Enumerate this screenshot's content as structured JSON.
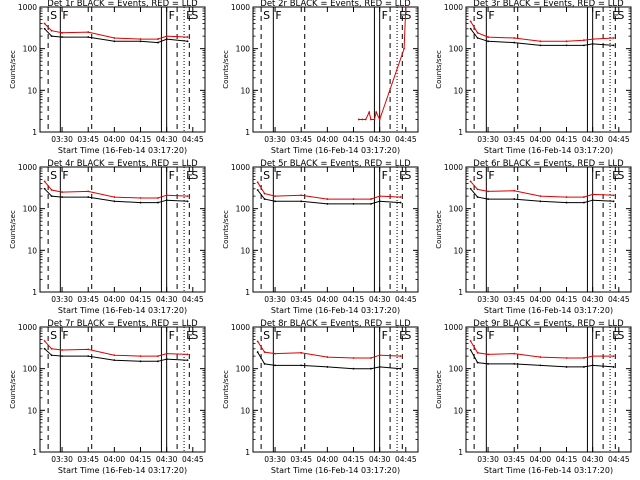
{
  "figure": {
    "common_xlabel": "Start Time (16-Feb-14 03:17:20)",
    "common_ylabel": "Counts/sec",
    "x_tick_labels": [
      "03:30",
      "03:45",
      "04:00",
      "04:15",
      "04:30",
      "04:45"
    ],
    "y_tick_labels": [
      "1",
      "10",
      "100",
      "1000"
    ],
    "colors": {
      "black_series": "#000000",
      "red_series": "#e00000"
    },
    "marker_labels": {
      "S": "S",
      "F": "F",
      "E": "E"
    }
  },
  "chart_data": [
    {
      "type": "line",
      "title": "Det 1r BLACK = Events, RED = LLD",
      "xlabel": "Start Time (16-Feb-14 03:17:20)",
      "ylabel": "Counts/sec",
      "x_ticks": [
        "03:30",
        "03:45",
        "04:00",
        "04:15",
        "04:30",
        "04:45"
      ],
      "y_scale": "log",
      "ylim": [
        1,
        1000
      ],
      "x_points": [
        "03:20",
        "03:24",
        "03:30",
        "03:45",
        "04:00",
        "04:15",
        "04:25",
        "04:30",
        "04:42"
      ],
      "series": [
        {
          "color": "black",
          "values": [
            300,
            200,
            190,
            190,
            150,
            150,
            140,
            170,
            150
          ]
        },
        {
          "color": "red",
          "values": [
            400,
            270,
            240,
            250,
            180,
            170,
            170,
            200,
            190
          ]
        }
      ],
      "markers_solid": [
        "03:29",
        "04:27",
        "04:30"
      ],
      "markers_dashed": [
        "03:22",
        "03:47",
        "04:36",
        "04:43"
      ],
      "markers_dotted": [
        "04:40"
      ],
      "marker_letters": [
        "S",
        "F",
        "F",
        "E",
        "S"
      ]
    },
    {
      "type": "line",
      "title": "Det 2r BLACK = Events, RED = LLD",
      "xlabel": "Start Time (16-Feb-14 03:17:20)",
      "ylabel": "Counts/sec",
      "x_ticks": [
        "03:30",
        "03:45",
        "04:00",
        "04:15",
        "04:30",
        "04:45"
      ],
      "y_scale": "log",
      "ylim": [
        1,
        1000
      ],
      "x_points": [
        "04:18",
        "04:20",
        "04:22",
        "04:24",
        "04:25",
        "04:27",
        "04:28",
        "04:30",
        "04:44",
        "04:45"
      ],
      "series": [
        {
          "color": "red",
          "values": [
            2,
            2,
            2,
            3,
            2,
            2,
            3,
            2,
            100,
            1000
          ]
        }
      ],
      "markers_solid": [
        "03:29",
        "04:27",
        "04:30"
      ],
      "markers_dashed": [
        "03:22",
        "03:47",
        "04:36",
        "04:43"
      ],
      "markers_dotted": [
        "04:40"
      ],
      "marker_letters": [
        "S",
        "F",
        "F",
        "E",
        "S"
      ]
    },
    {
      "type": "line",
      "title": "Det 3r BLACK = Events, RED = LLD",
      "xlabel": "Start Time (16-Feb-14 03:17:20)",
      "ylabel": "Counts/sec",
      "x_ticks": [
        "03:30",
        "03:45",
        "04:00",
        "04:15",
        "04:30",
        "04:45"
      ],
      "y_scale": "log",
      "ylim": [
        1,
        1000
      ],
      "x_points": [
        "03:20",
        "03:24",
        "03:30",
        "03:45",
        "04:00",
        "04:15",
        "04:25",
        "04:30",
        "04:42"
      ],
      "series": [
        {
          "color": "black",
          "values": [
            300,
            180,
            150,
            140,
            120,
            120,
            120,
            130,
            120
          ]
        },
        {
          "color": "red",
          "values": [
            450,
            240,
            190,
            180,
            150,
            150,
            160,
            170,
            180
          ]
        }
      ],
      "markers_solid": [
        "03:29",
        "04:27",
        "04:30"
      ],
      "markers_dashed": [
        "03:22",
        "03:47",
        "04:36",
        "04:43"
      ],
      "markers_dotted": [
        "04:40"
      ],
      "marker_letters": [
        "S",
        "F",
        "F",
        "E",
        "S"
      ]
    },
    {
      "type": "line",
      "title": "Det 4r BLACK = Events, RED = LLD",
      "xlabel": "Start Time (16-Feb-14 03:17:20)",
      "ylabel": "Counts/sec",
      "x_ticks": [
        "03:30",
        "03:45",
        "04:00",
        "04:15",
        "04:30",
        "04:45"
      ],
      "y_scale": "log",
      "ylim": [
        1,
        1000
      ],
      "x_points": [
        "03:20",
        "03:24",
        "03:30",
        "03:45",
        "04:00",
        "04:15",
        "04:25",
        "04:30",
        "04:42"
      ],
      "series": [
        {
          "color": "black",
          "values": [
            300,
            200,
            190,
            190,
            150,
            140,
            140,
            160,
            150
          ]
        },
        {
          "color": "red",
          "values": [
            450,
            280,
            250,
            260,
            190,
            180,
            180,
            210,
            200
          ]
        }
      ],
      "markers_solid": [
        "03:29",
        "04:27",
        "04:30"
      ],
      "markers_dashed": [
        "03:22",
        "03:47",
        "04:36",
        "04:43"
      ],
      "markers_dotted": [
        "04:40"
      ],
      "marker_letters": [
        "S",
        "F",
        "F",
        "E",
        "S"
      ]
    },
    {
      "type": "line",
      "title": "Det 5r BLACK = Events, RED = LLD",
      "xlabel": "Start Time (16-Feb-14 03:17:20)",
      "ylabel": "Counts/sec",
      "x_ticks": [
        "03:30",
        "03:45",
        "04:00",
        "04:15",
        "04:30",
        "04:45"
      ],
      "y_scale": "log",
      "ylim": [
        1,
        1000
      ],
      "x_points": [
        "03:20",
        "03:24",
        "03:30",
        "03:45",
        "04:00",
        "04:15",
        "04:25",
        "04:30",
        "04:42"
      ],
      "series": [
        {
          "color": "black",
          "values": [
            280,
            170,
            150,
            150,
            130,
            130,
            130,
            150,
            140
          ]
        },
        {
          "color": "red",
          "values": [
            430,
            230,
            200,
            210,
            170,
            170,
            170,
            200,
            190
          ]
        }
      ],
      "markers_solid": [
        "03:29",
        "04:27",
        "04:30"
      ],
      "markers_dashed": [
        "03:22",
        "03:47",
        "04:36",
        "04:43"
      ],
      "markers_dotted": [
        "04:40"
      ],
      "marker_letters": [
        "S",
        "F",
        "F",
        "E",
        "S"
      ]
    },
    {
      "type": "line",
      "title": "Det 6r BLACK = Events, RED = LLD",
      "xlabel": "Start Time (16-Feb-14 03:17:20)",
      "ylabel": "Counts/sec",
      "x_ticks": [
        "03:30",
        "03:45",
        "04:00",
        "04:15",
        "04:30",
        "04:45"
      ],
      "y_scale": "log",
      "ylim": [
        1,
        1000
      ],
      "x_points": [
        "03:20",
        "03:24",
        "03:30",
        "03:45",
        "04:00",
        "04:15",
        "04:25",
        "04:30",
        "04:42"
      ],
      "series": [
        {
          "color": "black",
          "values": [
            300,
            190,
            170,
            170,
            150,
            140,
            140,
            160,
            150
          ]
        },
        {
          "color": "red",
          "values": [
            450,
            290,
            260,
            270,
            200,
            190,
            190,
            220,
            210
          ]
        }
      ],
      "markers_solid": [
        "03:29",
        "04:27",
        "04:30"
      ],
      "markers_dashed": [
        "03:22",
        "03:47",
        "04:36",
        "04:43"
      ],
      "markers_dotted": [
        "04:40"
      ],
      "marker_letters": [
        "S",
        "F",
        "F",
        "E",
        "S"
      ]
    },
    {
      "type": "line",
      "title": "Det 7r BLACK = Events, RED = LLD",
      "xlabel": "Start Time (16-Feb-14 03:17:20)",
      "ylabel": "Counts/sec",
      "x_ticks": [
        "03:30",
        "03:45",
        "04:00",
        "04:15",
        "04:30",
        "04:45"
      ],
      "y_scale": "log",
      "ylim": [
        1,
        1000
      ],
      "x_points": [
        "03:20",
        "03:24",
        "03:30",
        "03:45",
        "04:00",
        "04:15",
        "04:25",
        "04:30",
        "04:42"
      ],
      "series": [
        {
          "color": "black",
          "values": [
            300,
            210,
            200,
            200,
            160,
            150,
            150,
            170,
            160
          ]
        },
        {
          "color": "red",
          "values": [
            460,
            300,
            280,
            290,
            210,
            200,
            200,
            230,
            220
          ]
        }
      ],
      "markers_solid": [
        "03:29",
        "04:27",
        "04:30"
      ],
      "markers_dashed": [
        "03:22",
        "03:47",
        "04:36",
        "04:43"
      ],
      "markers_dotted": [
        "04:40"
      ],
      "marker_letters": [
        "S",
        "F",
        "F",
        "E",
        "S"
      ]
    },
    {
      "type": "line",
      "title": "Det 8r BLACK = Events, RED = LLD",
      "xlabel": "Start Time (16-Feb-14 03:17:20)",
      "ylabel": "Counts/sec",
      "x_ticks": [
        "03:30",
        "03:45",
        "04:00",
        "04:15",
        "04:30",
        "04:45"
      ],
      "y_scale": "log",
      "ylim": [
        1,
        1000
      ],
      "x_points": [
        "03:20",
        "03:24",
        "03:30",
        "03:45",
        "04:00",
        "04:15",
        "04:25",
        "04:30",
        "04:42"
      ],
      "series": [
        {
          "color": "black",
          "values": [
            250,
            130,
            120,
            120,
            110,
            100,
            100,
            110,
            100
          ]
        },
        {
          "color": "red",
          "values": [
            450,
            250,
            230,
            240,
            190,
            180,
            180,
            210,
            200
          ]
        }
      ],
      "markers_solid": [
        "03:29",
        "04:27",
        "04:30"
      ],
      "markers_dashed": [
        "03:22",
        "03:47",
        "04:36",
        "04:43"
      ],
      "markers_dotted": [
        "04:40"
      ],
      "marker_letters": [
        "S",
        "F",
        "F",
        "E",
        "S"
      ]
    },
    {
      "type": "line",
      "title": "Det 9r BLACK = Events, RED = LLD",
      "xlabel": "Start Time (16-Feb-14 03:17:20)",
      "ylabel": "Counts/sec",
      "x_ticks": [
        "03:30",
        "03:45",
        "04:00",
        "04:15",
        "04:30",
        "04:45"
      ],
      "y_scale": "log",
      "ylim": [
        1,
        1000
      ],
      "x_points": [
        "03:20",
        "03:24",
        "03:30",
        "03:45",
        "04:00",
        "04:15",
        "04:25",
        "04:30",
        "04:42"
      ],
      "series": [
        {
          "color": "black",
          "values": [
            280,
            140,
            130,
            130,
            120,
            110,
            110,
            120,
            110
          ]
        },
        {
          "color": "red",
          "values": [
            460,
            240,
            220,
            230,
            190,
            180,
            180,
            200,
            200
          ]
        }
      ],
      "markers_solid": [
        "03:29",
        "04:27",
        "04:30"
      ],
      "markers_dashed": [
        "03:22",
        "03:47",
        "04:36",
        "04:43"
      ],
      "markers_dotted": [
        "04:40"
      ],
      "marker_letters": [
        "S",
        "F",
        "F",
        "E",
        "S"
      ]
    }
  ]
}
